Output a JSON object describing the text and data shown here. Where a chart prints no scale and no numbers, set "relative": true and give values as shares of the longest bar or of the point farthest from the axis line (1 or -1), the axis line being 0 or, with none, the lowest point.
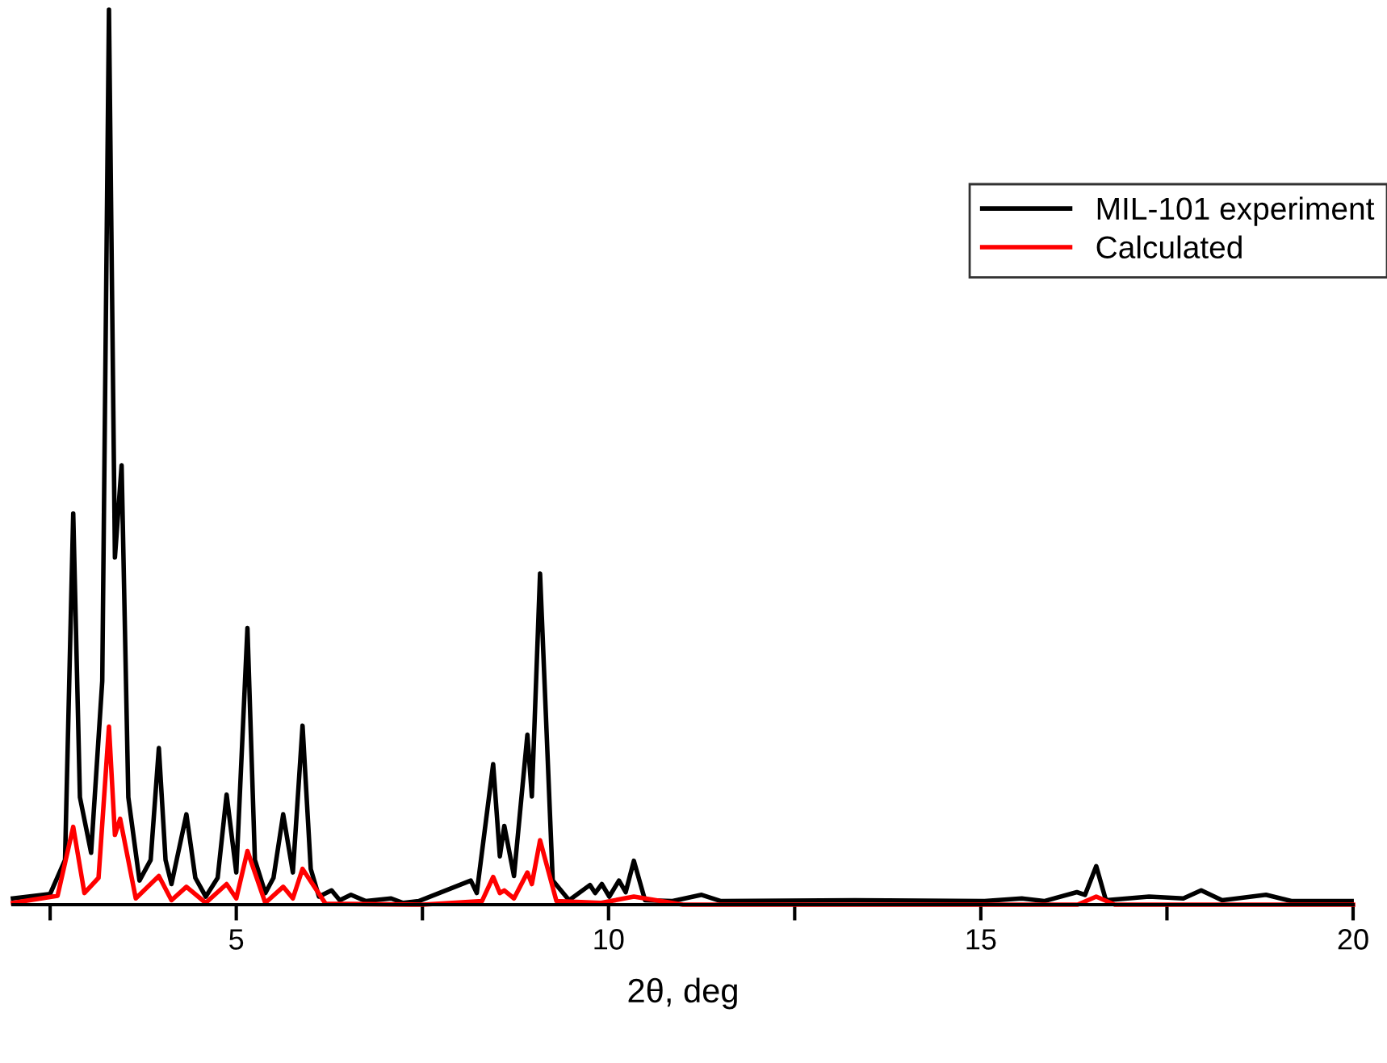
{
  "chart_data": {
    "type": "line",
    "relative": true,
    "xlabel": "2θ, deg",
    "xlim": [
      2,
      20
    ],
    "xticks": [
      {
        "value": 2.5,
        "label": null
      },
      5,
      {
        "value": 7.5,
        "label": null
      },
      10,
      {
        "value": 12.5,
        "label": null
      },
      15,
      {
        "value": 17.5,
        "label": null
      },
      20
    ],
    "legend": "top right",
    "grid": false,
    "marker": "none",
    "line_style": "solid",
    "series": [
      {
        "name": "MIL-101 experiment",
        "color": "#000000",
        "x": [
          2.0,
          2.5,
          2.7,
          2.81,
          2.9,
          3.05,
          3.2,
          3.29,
          3.37,
          3.46,
          3.55,
          3.7,
          3.85,
          3.96,
          4.05,
          4.13,
          4.33,
          4.45,
          4.59,
          4.75,
          4.87,
          5.0,
          5.15,
          5.25,
          5.39,
          5.5,
          5.63,
          5.76,
          5.89,
          6.0,
          6.11,
          6.28,
          6.39,
          6.54,
          6.74,
          7.08,
          7.24,
          7.45,
          8.15,
          8.23,
          8.45,
          8.54,
          8.6,
          8.73,
          8.91,
          8.97,
          9.08,
          9.25,
          9.47,
          9.75,
          9.82,
          9.91,
          10.01,
          10.14,
          10.23,
          10.34,
          10.49,
          10.86,
          11.25,
          11.51,
          13.31,
          15.05,
          15.55,
          15.85,
          16.29,
          16.4,
          16.55,
          16.68,
          17.26,
          17.72,
          17.96,
          18.24,
          18.83,
          19.17,
          19.98
        ],
        "values": [
          0.007,
          0.012,
          0.05,
          0.437,
          0.12,
          0.058,
          0.25,
          1.0,
          0.388,
          0.491,
          0.12,
          0.027,
          0.05,
          0.175,
          0.05,
          0.023,
          0.101,
          0.03,
          0.009,
          0.03,
          0.123,
          0.036,
          0.309,
          0.05,
          0.013,
          0.03,
          0.101,
          0.036,
          0.2,
          0.04,
          0.009,
          0.016,
          0.005,
          0.011,
          0.004,
          0.007,
          0.002,
          0.004,
          0.027,
          0.013,
          0.157,
          0.054,
          0.088,
          0.032,
          0.19,
          0.121,
          0.37,
          0.027,
          0.005,
          0.022,
          0.013,
          0.023,
          0.009,
          0.027,
          0.014,
          0.049,
          0.005,
          0.004,
          0.011,
          0.004,
          0.005,
          0.004,
          0.007,
          0.004,
          0.014,
          0.011,
          0.043,
          0.005,
          0.009,
          0.007,
          0.016,
          0.005,
          0.011,
          0.004,
          0.004
        ]
      },
      {
        "name": "Calculated",
        "color": "#ff0000",
        "x": [
          2.0,
          2.6,
          2.81,
          2.96,
          3.15,
          3.29,
          3.37,
          3.44,
          3.65,
          3.96,
          4.13,
          4.33,
          4.59,
          4.87,
          5.0,
          5.15,
          5.39,
          5.63,
          5.76,
          5.89,
          6.2,
          7.5,
          8.3,
          8.45,
          8.54,
          8.6,
          8.73,
          8.91,
          8.97,
          9.08,
          9.3,
          9.9,
          10.34,
          11.0,
          16.3,
          16.55,
          16.8,
          20.0
        ],
        "values": [
          0.002,
          0.01,
          0.087,
          0.013,
          0.03,
          0.199,
          0.078,
          0.096,
          0.007,
          0.032,
          0.005,
          0.02,
          0.002,
          0.023,
          0.007,
          0.06,
          0.002,
          0.02,
          0.007,
          0.04,
          0.001,
          0.0,
          0.004,
          0.031,
          0.013,
          0.016,
          0.007,
          0.036,
          0.023,
          0.072,
          0.004,
          0.002,
          0.009,
          0.0,
          0.0,
          0.009,
          0.0,
          0.0
        ]
      }
    ]
  }
}
